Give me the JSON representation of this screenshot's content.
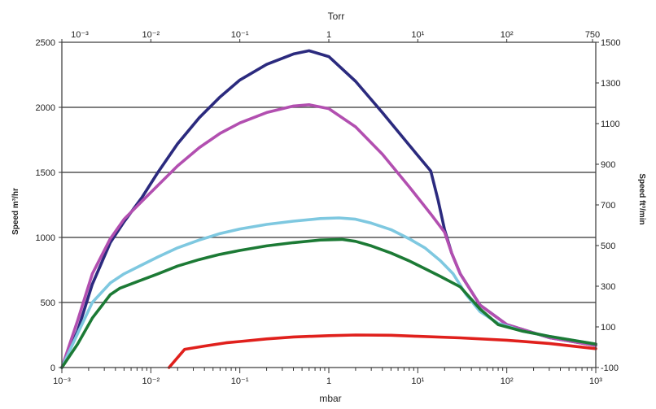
{
  "chart_data": {
    "type": "line",
    "xlabel": "mbar",
    "x2label": "Torr",
    "ylabel": "Speed m³/hr",
    "y2label": "Speed ft³/min",
    "xscale": "log",
    "xlim": [
      0.001,
      1000
    ],
    "ylim": [
      0,
      2500
    ],
    "y2lim": [
      -100,
      1500
    ],
    "grid": "horizontal",
    "legend": "none",
    "x_ticks": [
      "10⁻³",
      "10⁻²",
      "10⁻¹",
      "1",
      "10¹",
      "10²",
      "10³"
    ],
    "x2_ticks": [
      "10⁻³",
      "10⁻²",
      "10⁻¹",
      "1",
      "10¹",
      "10²",
      "750"
    ],
    "y_ticks": [
      "0",
      "500",
      "1000",
      "1500",
      "2000",
      "2500"
    ],
    "y2_ticks": [
      "-100",
      "100",
      "300",
      "500",
      "700",
      "900",
      "1100",
      "1300",
      "1500"
    ],
    "series": [
      {
        "color": "#2b2a7e",
        "x": [
          0.001,
          0.0015,
          0.0022,
          0.0035,
          0.005,
          0.008,
          0.012,
          0.02,
          0.035,
          0.06,
          0.1,
          0.2,
          0.4,
          0.6,
          1,
          2,
          4,
          8,
          14,
          17,
          20,
          24,
          30,
          50,
          100,
          300,
          1000
        ],
        "y": [
          0,
          280,
          640,
          960,
          1120,
          1310,
          1500,
          1720,
          1920,
          2080,
          2210,
          2330,
          2410,
          2435,
          2390,
          2200,
          1960,
          1710,
          1510,
          1280,
          1060,
          880,
          720,
          480,
          330,
          230,
          170
        ]
      },
      {
        "color": "#b24fb0",
        "x": [
          0.001,
          0.0015,
          0.0022,
          0.0035,
          0.005,
          0.008,
          0.012,
          0.02,
          0.035,
          0.06,
          0.1,
          0.2,
          0.4,
          0.6,
          1,
          2,
          4,
          8,
          14,
          20,
          24,
          30,
          50,
          100,
          300,
          1000
        ],
        "y": [
          0,
          360,
          720,
          990,
          1140,
          1280,
          1400,
          1550,
          1690,
          1800,
          1880,
          1960,
          2010,
          2020,
          1990,
          1850,
          1640,
          1390,
          1180,
          1040,
          880,
          720,
          480,
          330,
          230,
          170
        ]
      },
      {
        "color": "#7ec8e0",
        "x": [
          0.001,
          0.0015,
          0.0022,
          0.0035,
          0.005,
          0.008,
          0.012,
          0.02,
          0.035,
          0.06,
          0.1,
          0.2,
          0.4,
          0.8,
          1.3,
          2,
          3,
          5,
          8,
          12,
          18,
          25,
          35,
          50,
          80,
          150,
          300,
          1000
        ],
        "y": [
          0,
          260,
          500,
          650,
          720,
          790,
          850,
          920,
          980,
          1030,
          1065,
          1100,
          1125,
          1145,
          1150,
          1140,
          1110,
          1060,
          990,
          920,
          820,
          720,
          560,
          430,
          340,
          280,
          240,
          180
        ]
      },
      {
        "color": "#1c7a35",
        "x": [
          0.001,
          0.0015,
          0.0022,
          0.0035,
          0.0045,
          0.007,
          0.012,
          0.02,
          0.035,
          0.06,
          0.1,
          0.2,
          0.4,
          0.8,
          1.4,
          2,
          3,
          5,
          8,
          12,
          18,
          30,
          50,
          80,
          150,
          300,
          1000
        ],
        "y": [
          0,
          180,
          380,
          560,
          610,
          660,
          720,
          780,
          830,
          870,
          900,
          935,
          960,
          980,
          985,
          970,
          935,
          880,
          820,
          760,
          700,
          620,
          450,
          330,
          280,
          240,
          180
        ]
      },
      {
        "color": "#e0201c",
        "x": [
          0.016,
          0.024,
          0.04,
          0.07,
          0.1,
          0.2,
          0.4,
          1,
          2,
          5,
          10,
          30,
          100,
          300,
          1000
        ],
        "y": [
          0,
          140,
          165,
          190,
          200,
          220,
          235,
          245,
          250,
          248,
          240,
          228,
          210,
          185,
          145
        ]
      }
    ]
  }
}
